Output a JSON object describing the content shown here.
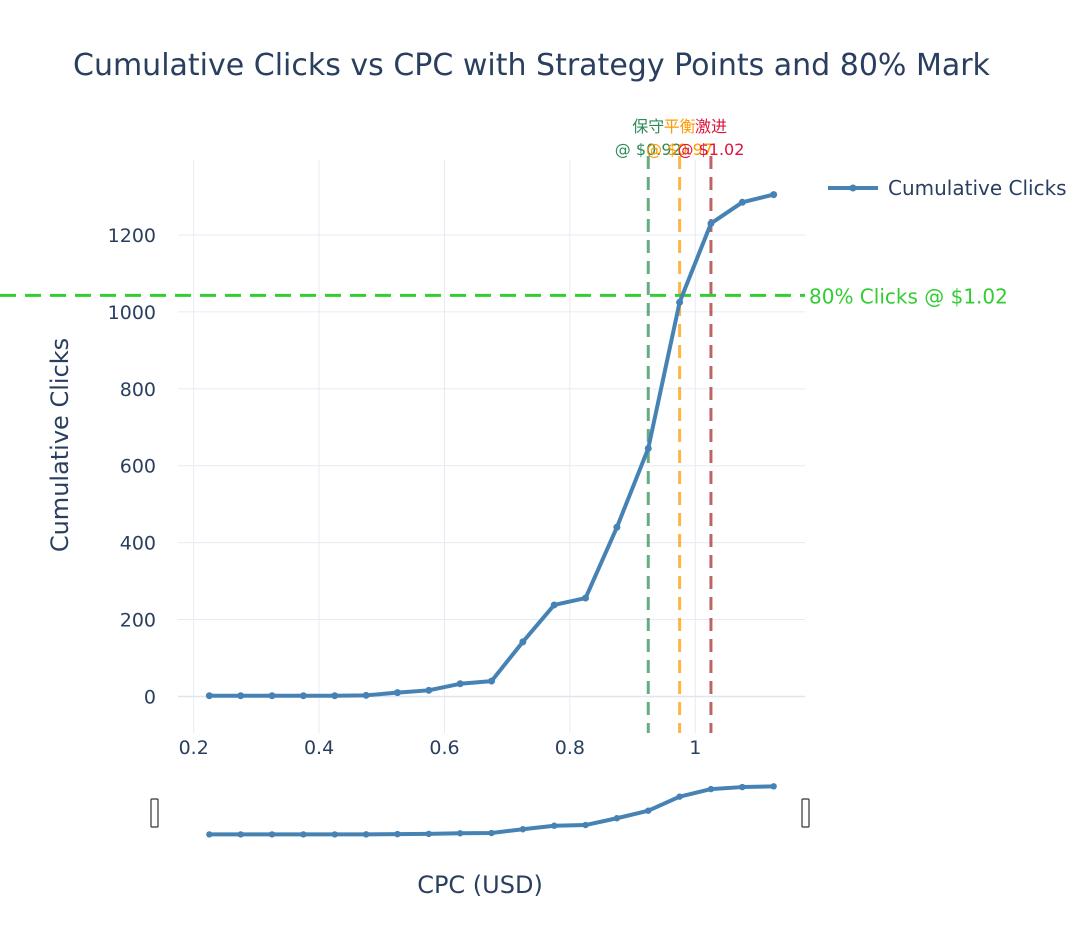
{
  "chart_data": {
    "type": "line",
    "title": "Cumulative Clicks vs CPC with Strategy Points and 80% Mark",
    "xlabel": "CPC (USD)",
    "ylabel": "Cumulative Clicks",
    "xlim": [
      0.175,
      1.175
    ],
    "ylim": [
      -95,
      1395
    ],
    "x_ticks": [
      0.2,
      0.4,
      0.6,
      0.8,
      1
    ],
    "x_tick_labels": [
      "0.2",
      "0.4",
      "0.6",
      "0.8",
      "1"
    ],
    "y_ticks": [
      0,
      200,
      400,
      600,
      800,
      1000,
      1200
    ],
    "y_tick_labels": [
      "0",
      "200",
      "400",
      "600",
      "800",
      "1000",
      "1200"
    ],
    "grid": true,
    "legend_position": "top-right",
    "rangeslider": true,
    "series": [
      {
        "name": "Cumulative Clicks",
        "color": "#4682b4",
        "x": [
          0.225,
          0.275,
          0.325,
          0.375,
          0.425,
          0.475,
          0.525,
          0.575,
          0.625,
          0.675,
          0.725,
          0.775,
          0.825,
          0.875,
          0.925,
          0.975,
          1.025,
          1.075,
          1.125
        ],
        "y": [
          2,
          2,
          2,
          2,
          2,
          3,
          10,
          16,
          33,
          40,
          142,
          238,
          256,
          440,
          645,
          1025,
          1230,
          1285,
          1305
        ]
      }
    ],
    "hlines": [
      {
        "y": 1043,
        "label": "80% Clicks @ $1.02",
        "color": "#32cd32"
      }
    ],
    "vlines": [
      {
        "x": 0.925,
        "label_line1": "保守",
        "label_line2": "@ $0.92",
        "color": "#2e8b57"
      },
      {
        "x": 0.975,
        "label_line1": "平衡",
        "label_line2": "@ $0.97",
        "color": "#ff9900"
      },
      {
        "x": 1.025,
        "label_line1": "激进",
        "label_line2": "@ $1.02",
        "color": "#dc143c",
        "line_color": "#a52a2a"
      }
    ]
  }
}
